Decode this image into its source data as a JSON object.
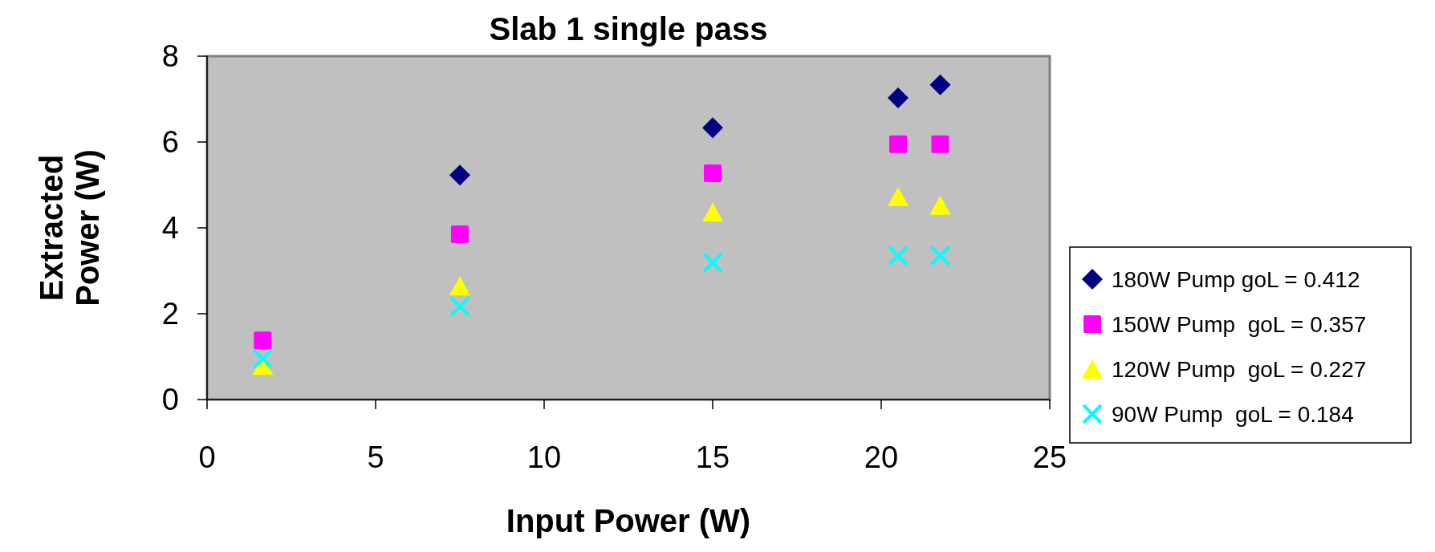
{
  "chart_data": {
    "type": "scatter",
    "title": "Slab 1 single pass",
    "xlabel": "Input Power (W)",
    "ylabel": "Extracted Power (W)",
    "x": [
      1.65,
      7.5,
      15,
      20.5,
      21.75
    ],
    "series": [
      {
        "name": "180W Pump goL = 0.412",
        "color": "#000080",
        "marker": "diamond",
        "values": [
          null,
          5.23,
          6.33,
          7.03,
          7.33
        ]
      },
      {
        "name": "150W Pump  goL = 0.357",
        "color": "#ff00ff",
        "marker": "square",
        "values": [
          1.38,
          3.85,
          5.27,
          5.95,
          5.95
        ]
      },
      {
        "name": "120W Pump  goL = 0.227",
        "color": "#ffff00",
        "marker": "triangle",
        "values": [
          0.8,
          2.65,
          4.37,
          4.73,
          4.53
        ]
      },
      {
        "name": "90W Pump  goL = 0.184",
        "color": "#00ffff",
        "marker": "cross",
        "values": [
          0.95,
          2.17,
          3.19,
          3.35,
          3.35
        ]
      }
    ],
    "xlim": [
      0,
      25
    ],
    "xticks": [
      0,
      5,
      10,
      15,
      20,
      25
    ],
    "ylim": [
      0,
      8
    ],
    "yticks": [
      0,
      2,
      4,
      6,
      8
    ],
    "grid": false,
    "legend": "right"
  }
}
